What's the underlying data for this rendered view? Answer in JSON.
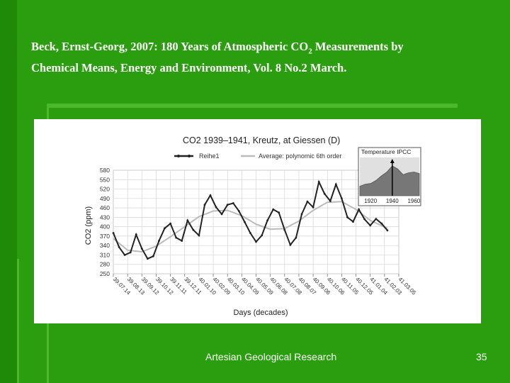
{
  "slide": {
    "citation_line1_pre": "Beck, Ernst-Georg, 2007: 180 Years of Atmospheric CO",
    "citation_sub": "2",
    "citation_line1_post": " Measurements by",
    "citation_line2": "Chemical Means, Energy and Environment, Vol. 8 No.2 March.",
    "footer": "Artesian Geological Research",
    "page_number": "35"
  },
  "chart_data": [
    {
      "type": "line",
      "title": "CO2 1939–1941, Kreutz, at Giessen (D)",
      "xlabel": "Days (decades)",
      "ylabel": "CO2 (ppm)",
      "categories": [
        "39.07.14",
        "39.08.13",
        "39.09.12",
        "39.10.12",
        "39.11.11",
        "39.12.11",
        "40.01.10",
        "40.02.09",
        "40.03.10",
        "40.04.09",
        "40.05.09",
        "40.06.08",
        "40.07.08",
        "40.08.07",
        "40.09.06",
        "40.10.06",
        "40.11.05",
        "40.12.05",
        "41.01.04",
        "41.02.03",
        "41.03.05"
      ],
      "ylim": [
        250,
        580
      ],
      "yticks": [
        250,
        280,
        310,
        340,
        370,
        400,
        430,
        460,
        490,
        520,
        550,
        580
      ],
      "legend": [
        "Reihe1",
        "Average: polynomic 6th order"
      ],
      "legend_position": "top",
      "grid": true,
      "series": [
        {
          "name": "Reihe1",
          "color": "#222222",
          "x": [
            0,
            0.4,
            0.8,
            1.2,
            1.6,
            2.0,
            2.4,
            2.8,
            3.2,
            3.6,
            4.0,
            4.4,
            4.8,
            5.2,
            5.6,
            6.0,
            6.4,
            6.8,
            7.2,
            7.6,
            8.0,
            8.4,
            8.8,
            9.2,
            9.6,
            10.0,
            10.4,
            10.8,
            11.2,
            11.6,
            12.0,
            12.4,
            12.8,
            13.2,
            13.6,
            14.0,
            14.4,
            14.8,
            15.2,
            15.6,
            16.0,
            16.4,
            16.8,
            17.2,
            17.6,
            18.0,
            18.4,
            18.8,
            19.2
          ],
          "values": [
            380,
            335,
            310,
            318,
            375,
            330,
            298,
            306,
            355,
            395,
            410,
            365,
            355,
            420,
            390,
            372,
            470,
            500,
            462,
            440,
            470,
            475,
            450,
            415,
            380,
            352,
            372,
            420,
            455,
            445,
            390,
            342,
            365,
            440,
            480,
            462,
            543,
            505,
            482,
            535,
            490,
            430,
            416,
            455,
            424,
            404,
            425,
            410,
            388
          ]
        },
        {
          "name": "Average: polynomic 6th order",
          "color": "#bbbbbb",
          "x": [
            0,
            1,
            2,
            3,
            4,
            5,
            6,
            7,
            8,
            9,
            10,
            11,
            12,
            13,
            14,
            15,
            16,
            17,
            18,
            19.2
          ],
          "values": [
            362,
            325,
            320,
            338,
            368,
            400,
            432,
            450,
            452,
            435,
            408,
            392,
            394,
            418,
            452,
            478,
            480,
            455,
            420,
            395
          ]
        }
      ]
    },
    {
      "type": "area",
      "title": "Temperature IPCC",
      "categories": [
        "1920",
        "1940",
        "1960"
      ],
      "series": [
        {
          "name": "Temperature IPCC",
          "color": "#777777",
          "x": [
            1910,
            1915,
            1920,
            1925,
            1930,
            1935,
            1940,
            1945,
            1950,
            1955,
            1960,
            1965
          ],
          "values": [
            0.25,
            0.3,
            0.32,
            0.4,
            0.52,
            0.62,
            0.78,
            0.7,
            0.55,
            0.6,
            0.62,
            0.58
          ]
        }
      ]
    }
  ]
}
